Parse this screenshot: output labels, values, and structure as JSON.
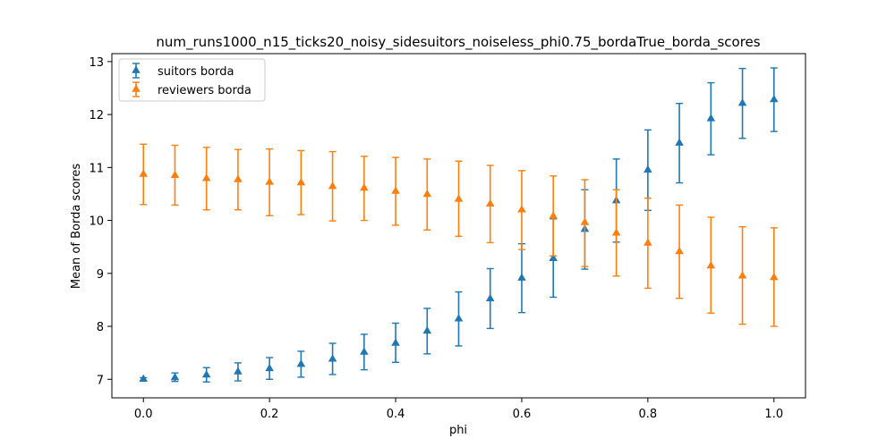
{
  "chart_data": {
    "type": "scatter",
    "title": "num_runs1000_n15_ticks20_noisy_sidesuitors_noiseless_phi0.75_bordaTrue_borda_scores",
    "xlabel": "phi",
    "ylabel": "Mean of Borda scores",
    "xlim": [
      -0.05,
      1.05
    ],
    "ylim": [
      6.65,
      13.15
    ],
    "x_ticks": [
      0.0,
      0.2,
      0.4,
      0.6,
      0.8,
      1.0
    ],
    "x_tick_labels": [
      "0.0",
      "0.2",
      "0.4",
      "0.6",
      "0.8",
      "1.0"
    ],
    "y_ticks": [
      7,
      8,
      9,
      10,
      11,
      12,
      13
    ],
    "y_tick_labels": [
      "7",
      "8",
      "9",
      "10",
      "11",
      "12",
      "13"
    ],
    "grid": false,
    "legend_position": "top-left",
    "marker": "triangle-up",
    "error_bars": true,
    "x": [
      0.0,
      0.05,
      0.1,
      0.15,
      0.2,
      0.25,
      0.3,
      0.35,
      0.4,
      0.45,
      0.5,
      0.55,
      0.6,
      0.65,
      0.7,
      0.75,
      0.8,
      0.85,
      0.9,
      0.95,
      1.0
    ],
    "series": [
      {
        "name": "suitors borda",
        "color": "#1f77b4",
        "values": [
          7.0,
          7.03,
          7.08,
          7.14,
          7.2,
          7.28,
          7.38,
          7.51,
          7.68,
          7.91,
          8.14,
          8.52,
          8.91,
          9.28,
          9.83,
          10.37,
          10.95,
          11.46,
          11.92,
          12.21,
          12.28
        ],
        "err_low": [
          6.97,
          6.96,
          6.95,
          6.97,
          7.0,
          7.04,
          7.09,
          7.18,
          7.32,
          7.48,
          7.63,
          7.96,
          8.26,
          8.55,
          9.08,
          9.59,
          10.19,
          10.71,
          11.24,
          11.55,
          11.68
        ],
        "err_high": [
          7.03,
          7.12,
          7.22,
          7.31,
          7.41,
          7.53,
          7.68,
          7.85,
          8.06,
          8.34,
          8.65,
          9.09,
          9.56,
          10.03,
          10.58,
          11.16,
          11.71,
          12.21,
          12.6,
          12.87,
          12.88
        ]
      },
      {
        "name": "reviewers borda",
        "color": "#ff7f0e",
        "values": [
          10.87,
          10.85,
          10.79,
          10.77,
          10.72,
          10.71,
          10.64,
          10.61,
          10.55,
          10.49,
          10.4,
          10.31,
          10.2,
          10.08,
          9.96,
          9.76,
          9.57,
          9.41,
          9.14,
          8.95,
          8.92
        ],
        "err_low": [
          10.3,
          10.29,
          10.2,
          10.2,
          10.09,
          10.11,
          9.99,
          10.0,
          9.91,
          9.82,
          9.7,
          9.58,
          9.45,
          9.33,
          9.13,
          8.95,
          8.72,
          8.53,
          8.25,
          8.04,
          8.0
        ],
        "err_high": [
          11.44,
          11.42,
          11.38,
          11.34,
          11.35,
          11.32,
          11.3,
          11.21,
          11.19,
          11.16,
          11.12,
          11.04,
          10.94,
          10.84,
          10.77,
          10.58,
          10.42,
          10.29,
          10.06,
          9.88,
          9.86
        ]
      }
    ]
  }
}
